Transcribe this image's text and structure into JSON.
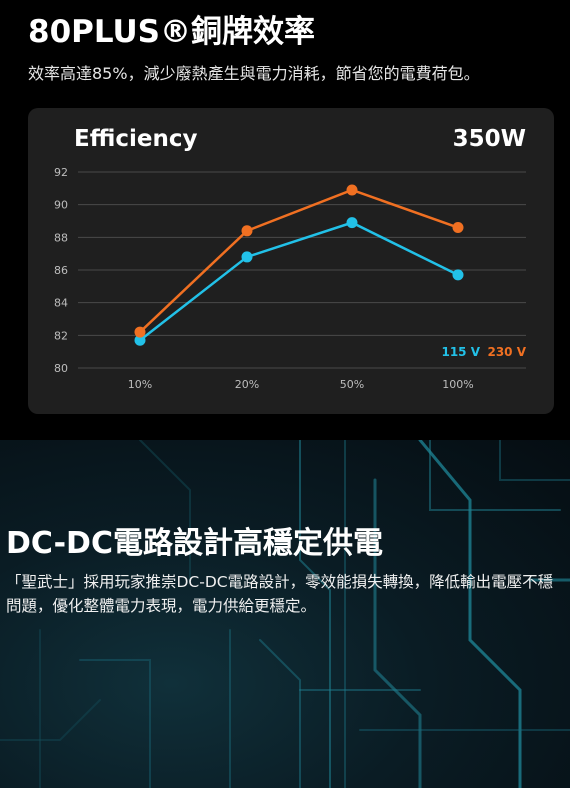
{
  "section1": {
    "title": "80PLUS®銅牌效率",
    "subtitle": "效率高達85%，減少廢熱產生與電力消耗，節省您的電費荷包。"
  },
  "card": {
    "title": "Efficiency",
    "wattage": "350W"
  },
  "chart_data": {
    "type": "line",
    "title": "Efficiency",
    "categories": [
      "10%",
      "20%",
      "50%",
      "100%"
    ],
    "ylim": [
      80,
      92
    ],
    "yticks": [
      80,
      82,
      84,
      86,
      88,
      90,
      92
    ],
    "grid": true,
    "legend_placement": "bottom-right",
    "series": [
      {
        "name": "115 V",
        "color": "#22c1e8",
        "values": [
          81.7,
          86.8,
          88.9,
          85.7
        ]
      },
      {
        "name": "230 V",
        "color": "#f07022",
        "values": [
          82.2,
          88.4,
          90.9,
          88.6
        ]
      }
    ]
  },
  "section2": {
    "title": "DC-DC電路設計高穩定供電",
    "subtitle": "「聖武士」採用玩家推崇DC-DC電路設計，零效能損失轉換，降低輸出電壓不穩問題，優化整體電力表現，電力供給更穩定。"
  },
  "colors": {
    "background": "#000000",
    "card": "#1f1f1f",
    "grid": "#4a4a4a",
    "axis_text": "#bdbdbd"
  }
}
